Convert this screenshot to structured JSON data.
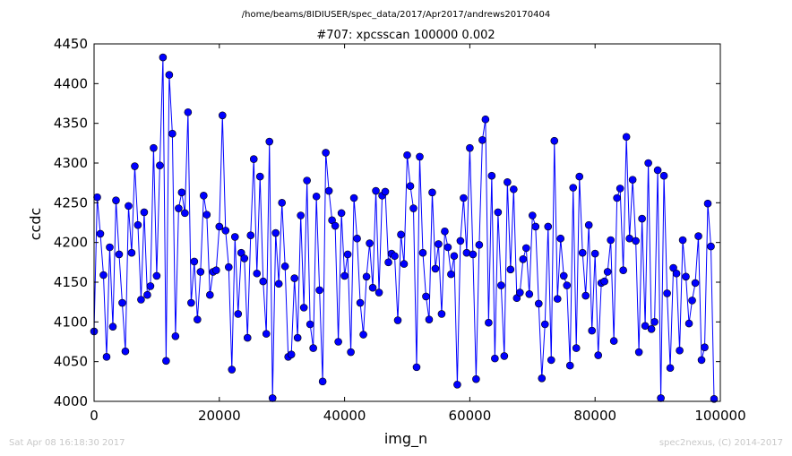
{
  "chart_data": {
    "type": "line",
    "file_path": "/home/beams/8IDIUSER/spec_data/2017/Apr2017/andrews20170404",
    "title": "#707: xpcsscan 100000 0.002",
    "xlabel": "img_n",
    "ylabel": "ccdc",
    "xlim": [
      0,
      100000
    ],
    "ylim": [
      4000,
      4450
    ],
    "xticks": [
      0,
      20000,
      40000,
      60000,
      80000,
      100000
    ],
    "yticks": [
      4000,
      4050,
      4100,
      4150,
      4200,
      4250,
      4300,
      4350,
      4400,
      4450
    ],
    "xtick_labels": [
      "0",
      "20000",
      "40000",
      "60000",
      "80000",
      "100000"
    ],
    "ytick_labels": [
      "4000",
      "4050",
      "4100",
      "4150",
      "4200",
      "4250",
      "4300",
      "4350",
      "4400",
      "4450"
    ],
    "grid": false,
    "series": [
      {
        "color": "#0000ff",
        "marker": "circle",
        "x_start": 0,
        "x_step": 500,
        "values": [
          4088,
          4257,
          4211,
          4159,
          4056,
          4194,
          4094,
          4253,
          4185,
          4124,
          4063,
          4246,
          4187,
          4296,
          4222,
          4128,
          4238,
          4134,
          4145,
          4319,
          4158,
          4297,
          4433,
          4051,
          4411,
          4337,
          4082,
          4243,
          4263,
          4237,
          4364,
          4124,
          4176,
          4103,
          4163,
          4259,
          4235,
          4134,
          4163,
          4165,
          4220,
          4360,
          4215,
          4169,
          4040,
          4207,
          4110,
          4187,
          4180,
          4080,
          4209,
          4305,
          4161,
          4283,
          4151,
          4085,
          4327,
          4004,
          4212,
          4148,
          4250,
          4170,
          4056,
          4059,
          4155,
          4080,
          4234,
          4118,
          4278,
          4097,
          4067,
          4258,
          4140,
          4025,
          4313,
          4265,
          4228,
          4221,
          4075,
          4237,
          4158,
          4185,
          4062,
          4256,
          4205,
          4124,
          4084,
          4157,
          4199,
          4143,
          4265,
          4137,
          4259,
          4264,
          4175,
          4186,
          4183,
          4102,
          4210,
          4173,
          4310,
          4271,
          4243,
          4043,
          4308,
          4187,
          4132,
          4103,
          4263,
          4167,
          4198,
          4110,
          4214,
          4194,
          4160,
          4183,
          4021,
          4202,
          4256,
          4187,
          4319,
          4185,
          4028,
          4197,
          4329,
          4355,
          4099,
          4284,
          4054,
          4238,
          4146,
          4057,
          4276,
          4166,
          4267,
          4130,
          4137,
          4179,
          4193,
          4135,
          4234,
          4220,
          4123,
          4029,
          4097,
          4220,
          4052,
          4328,
          4129,
          4205,
          4158,
          4146,
          4045,
          4269,
          4067,
          4283,
          4187,
          4133,
          4222,
          4089,
          4186,
          4058,
          4149,
          4151,
          4163,
          4203,
          4076,
          4256,
          4268,
          4165,
          4333,
          4205,
          4279,
          4202,
          4062,
          4230,
          4095,
          4300,
          4091,
          4100,
          4291,
          4004,
          4284,
          4136,
          4042,
          4168,
          4161,
          4064,
          4203,
          4157,
          4098,
          4127,
          4149,
          4208,
          4052,
          4068,
          4249,
          4195,
          4003
        ]
      }
    ]
  },
  "footer": {
    "left": "Sat Apr 08 16:18:30 2017",
    "right": "spec2nexus, (C) 2014-2017"
  }
}
